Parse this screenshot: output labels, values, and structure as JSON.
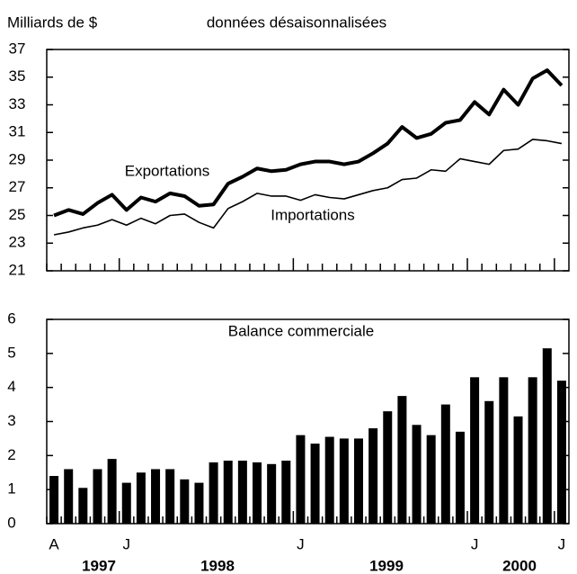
{
  "chart_data": [
    {
      "type": "line",
      "title": "données désaisonnalisées",
      "y_label": "Milliards de $",
      "ylim": [
        21,
        37
      ],
      "yticks": [
        21,
        23,
        25,
        27,
        29,
        31,
        33,
        35,
        37
      ],
      "series": [
        {
          "name": "Exportations",
          "color": "#000000",
          "values": [
            25.0,
            25.4,
            25.1,
            25.9,
            26.5,
            25.4,
            26.3,
            26.0,
            26.6,
            26.4,
            25.7,
            25.8,
            27.3,
            27.8,
            28.4,
            28.2,
            28.3,
            28.7,
            28.9,
            28.9,
            28.7,
            28.9,
            29.5,
            30.2,
            31.4,
            30.6,
            30.9,
            31.7,
            31.9,
            33.2,
            32.3,
            34.1,
            33.0,
            34.9,
            35.5,
            34.4
          ]
        },
        {
          "name": "Importations",
          "color": "#000000",
          "values": [
            23.6,
            23.8,
            24.1,
            24.3,
            24.7,
            24.3,
            24.8,
            24.4,
            25.0,
            25.1,
            24.5,
            24.1,
            25.5,
            26.0,
            26.6,
            26.4,
            26.4,
            26.1,
            26.5,
            26.3,
            26.2,
            26.5,
            26.8,
            27.0,
            27.6,
            27.7,
            28.3,
            28.2,
            29.1,
            28.9,
            28.7,
            29.7,
            29.8,
            30.5,
            30.4,
            30.2
          ]
        }
      ]
    },
    {
      "type": "bar",
      "title": "Balance commerciale",
      "color": "#000000",
      "ylim": [
        0,
        6
      ],
      "yticks": [
        0,
        1,
        2,
        3,
        4,
        5,
        6
      ],
      "categories": [
        "A",
        null,
        null,
        null,
        null,
        "J",
        null,
        null,
        null,
        null,
        null,
        null,
        null,
        null,
        null,
        null,
        null,
        "J",
        null,
        null,
        null,
        null,
        null,
        null,
        null,
        null,
        null,
        null,
        null,
        "J",
        null,
        null,
        null,
        null,
        null,
        "J"
      ],
      "years": [
        "1997",
        "1998",
        "1999",
        "2000"
      ],
      "values": [
        1.4,
        1.6,
        1.05,
        1.6,
        1.9,
        1.2,
        1.5,
        1.6,
        1.6,
        1.3,
        1.2,
        1.8,
        1.85,
        1.85,
        1.8,
        1.75,
        1.85,
        2.6,
        2.35,
        2.55,
        2.5,
        2.5,
        2.8,
        3.3,
        3.75,
        2.9,
        2.6,
        3.5,
        2.7,
        4.3,
        3.6,
        4.3,
        3.15,
        4.3,
        5.15,
        4.2
      ]
    }
  ]
}
